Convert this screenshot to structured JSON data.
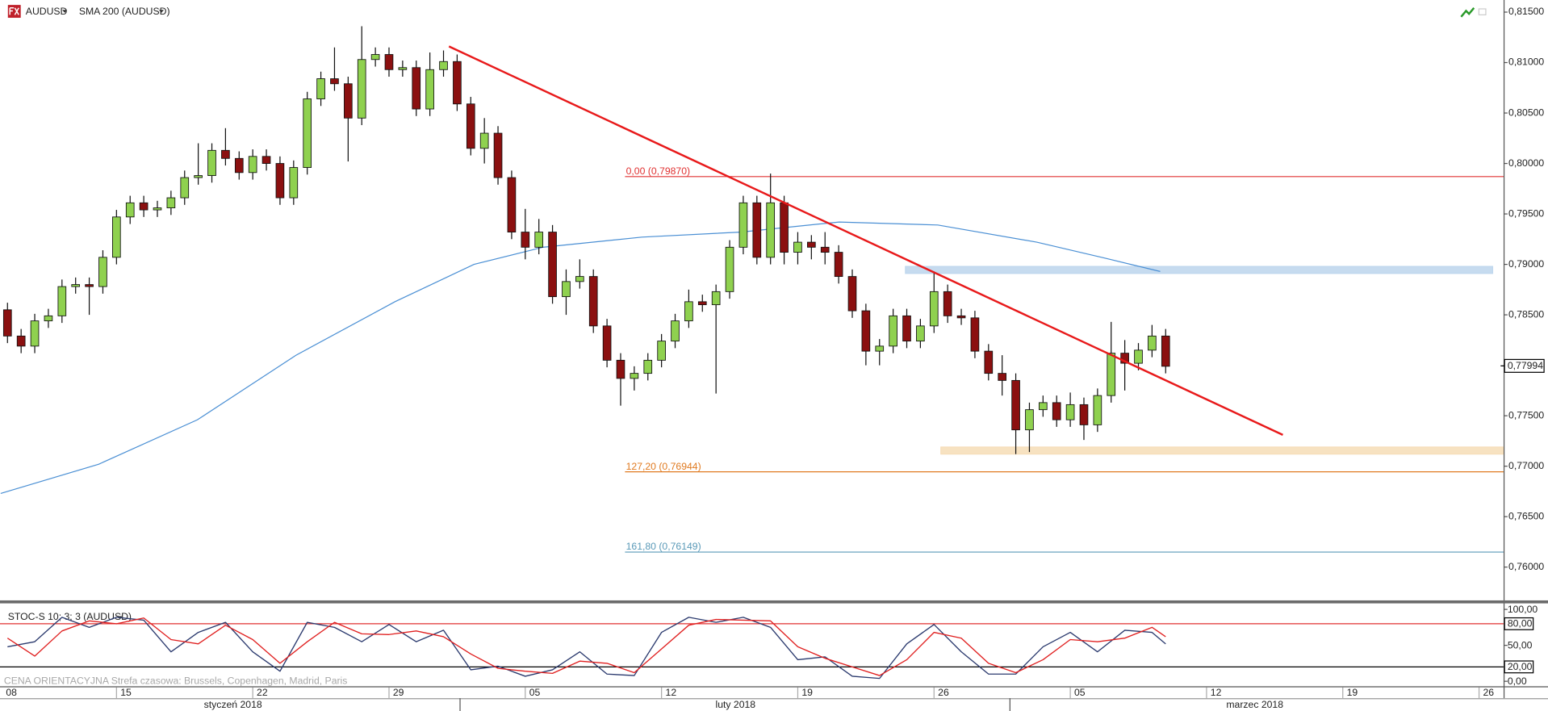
{
  "labels": {
    "watermark": "CENA ORIENTACYJNA   Strefa czasowa: Brussels, Copenhagen, Madrid, Paris",
    "months": [
      "styczeń 2018",
      "luty 2018",
      "marzec 2018"
    ]
  },
  "chart_data": [
    {
      "type": "candlestick",
      "title": "AUDUSD",
      "up_color": "#8fd14f",
      "down_color": "#8b1010",
      "grid": false,
      "xlim": [
        0.725,
        55.9
      ],
      "ylim": [
        0.7567,
        0.8162
      ],
      "yticks": [
        {
          "value": 0.815,
          "label": "0,81500"
        },
        {
          "value": 0.81,
          "label": "0,81000"
        },
        {
          "value": 0.805,
          "label": "0,80500"
        },
        {
          "value": 0.8,
          "label": "0,80000"
        },
        {
          "value": 0.795,
          "label": "0,79500"
        },
        {
          "value": 0.79,
          "label": "0,79000"
        },
        {
          "value": 0.785,
          "label": "0,78500"
        },
        {
          "value": 0.78,
          "label": "0,78000"
        },
        {
          "value": 0.775,
          "label": "0,77500"
        },
        {
          "value": 0.77,
          "label": "0,77000"
        },
        {
          "value": 0.765,
          "label": "0,76500"
        },
        {
          "value": 0.76,
          "label": "0,76000"
        }
      ],
      "x": [
        1,
        1.5,
        2,
        2.5,
        3,
        3.5,
        4,
        4.5,
        5,
        5.5,
        6,
        6.5,
        7,
        7.5,
        8,
        8.5,
        9,
        9.5,
        10,
        10.5,
        11,
        11.5,
        12,
        12.5,
        13,
        13.5,
        14,
        14.5,
        15,
        15.5,
        16,
        16.5,
        17,
        17.5,
        18,
        18.5,
        19,
        19.5,
        20,
        20.5,
        21,
        21.5,
        22,
        22.5,
        23,
        23.5,
        24,
        24.5,
        25,
        25.5,
        26,
        26.5,
        27,
        27.5,
        28,
        28.5,
        29,
        29.5,
        30,
        30.5,
        31,
        31.5,
        32,
        32.5,
        33,
        33.5,
        34,
        34.5,
        35,
        35.5,
        36,
        36.5,
        37,
        37.5,
        38,
        38.5,
        39,
        39.5,
        40,
        40.5,
        41,
        41.5,
        42,
        42.5,
        43,
        43.5
      ],
      "open": [
        0.7855,
        0.7829,
        0.7819,
        0.7844,
        0.7849,
        0.7878,
        0.788,
        0.7878,
        0.7907,
        0.7947,
        0.7961,
        0.7954,
        0.7956,
        0.7966,
        0.7986,
        0.7988,
        0.8013,
        0.8005,
        0.7991,
        0.8007,
        0.8,
        0.7966,
        0.7996,
        0.8064,
        0.8084,
        0.8079,
        0.8045,
        0.8103,
        0.8108,
        0.8093,
        0.8095,
        0.8054,
        0.8093,
        0.8101,
        0.8059,
        0.8015,
        0.803,
        0.7986,
        0.7932,
        0.7917,
        0.7932,
        0.7868,
        0.7883,
        0.7888,
        0.7839,
        0.7805,
        0.7787,
        0.7792,
        0.7805,
        0.7824,
        0.7844,
        0.7863,
        0.786,
        0.7873,
        0.7917,
        0.7961,
        0.7907,
        0.7961,
        0.7912,
        0.7922,
        0.7917,
        0.7912,
        0.7888,
        0.7854,
        0.7814,
        0.7819,
        0.7849,
        0.7824,
        0.7839,
        0.7873,
        0.7849,
        0.7847,
        0.7814,
        0.7792,
        0.7785,
        0.7736,
        0.7756,
        0.7763,
        0.7746,
        0.7761,
        0.7741,
        0.777,
        0.7812,
        0.7802,
        0.7815,
        0.7829
      ],
      "high": [
        0.7862,
        0.7836,
        0.7851,
        0.7856,
        0.7885,
        0.7887,
        0.7887,
        0.7914,
        0.7954,
        0.7968,
        0.7968,
        0.7963,
        0.7973,
        0.7993,
        0.802,
        0.802,
        0.8035,
        0.8012,
        0.8014,
        0.8014,
        0.8007,
        0.8003,
        0.8071,
        0.8091,
        0.8115,
        0.8086,
        0.8136,
        0.8115,
        0.8115,
        0.8102,
        0.8102,
        0.811,
        0.8112,
        0.8108,
        0.8066,
        0.8045,
        0.8037,
        0.7993,
        0.7955,
        0.7945,
        0.7939,
        0.7895,
        0.7905,
        0.7895,
        0.7846,
        0.7812,
        0.7799,
        0.7812,
        0.7831,
        0.7851,
        0.7875,
        0.787,
        0.788,
        0.7924,
        0.7968,
        0.7968,
        0.799,
        0.7968,
        0.7932,
        0.7929,
        0.7932,
        0.7919,
        0.7895,
        0.7861,
        0.7826,
        0.7856,
        0.7856,
        0.7846,
        0.7893,
        0.788,
        0.7856,
        0.7854,
        0.7821,
        0.781,
        0.7792,
        0.7763,
        0.777,
        0.777,
        0.7773,
        0.7768,
        0.7777,
        0.7843,
        0.7825,
        0.7822,
        0.784,
        0.7836
      ],
      "low": [
        0.7822,
        0.7812,
        0.7812,
        0.7837,
        0.7842,
        0.7871,
        0.785,
        0.7871,
        0.79,
        0.794,
        0.7947,
        0.7947,
        0.7949,
        0.7959,
        0.7979,
        0.7981,
        0.7998,
        0.7984,
        0.7984,
        0.7993,
        0.7959,
        0.7959,
        0.7989,
        0.8057,
        0.8072,
        0.8002,
        0.8038,
        0.8096,
        0.8086,
        0.8086,
        0.8047,
        0.8047,
        0.8086,
        0.8052,
        0.8008,
        0.8,
        0.7979,
        0.7925,
        0.7905,
        0.791,
        0.7861,
        0.785,
        0.7876,
        0.7832,
        0.7798,
        0.776,
        0.7775,
        0.7785,
        0.7798,
        0.7817,
        0.7837,
        0.7853,
        0.7772,
        0.7866,
        0.791,
        0.79,
        0.79,
        0.79,
        0.79,
        0.7905,
        0.79,
        0.7881,
        0.7847,
        0.78,
        0.78,
        0.7812,
        0.7817,
        0.7817,
        0.7832,
        0.7842,
        0.784,
        0.7807,
        0.7785,
        0.777,
        0.7712,
        0.7714,
        0.7749,
        0.7739,
        0.7739,
        0.7726,
        0.7734,
        0.7763,
        0.7775,
        0.7795,
        0.7808,
        0.7792
      ],
      "close": [
        0.7829,
        0.7819,
        0.7844,
        0.7849,
        0.7878,
        0.788,
        0.7878,
        0.7907,
        0.7947,
        0.7961,
        0.7954,
        0.7956,
        0.7966,
        0.7986,
        0.7988,
        0.8013,
        0.8005,
        0.7991,
        0.8007,
        0.8,
        0.7966,
        0.7996,
        0.8064,
        0.8084,
        0.8079,
        0.8045,
        0.8103,
        0.8108,
        0.8093,
        0.8095,
        0.8054,
        0.8093,
        0.8101,
        0.8059,
        0.8015,
        0.803,
        0.7986,
        0.7932,
        0.7917,
        0.7932,
        0.7868,
        0.7883,
        0.7888,
        0.7839,
        0.7805,
        0.7787,
        0.7792,
        0.7805,
        0.7824,
        0.7844,
        0.7863,
        0.786,
        0.7873,
        0.7917,
        0.7961,
        0.7907,
        0.7961,
        0.7912,
        0.7922,
        0.7917,
        0.7912,
        0.7888,
        0.7854,
        0.7814,
        0.7819,
        0.7849,
        0.7824,
        0.7839,
        0.7873,
        0.7849,
        0.7847,
        0.7814,
        0.7792,
        0.7785,
        0.7736,
        0.7756,
        0.7763,
        0.7746,
        0.7761,
        0.7741,
        0.777,
        0.7812,
        0.7802,
        0.7815,
        0.7829,
        0.7799
      ],
      "series": [
        {
          "name": "SMA 200 (AUDUSD)",
          "color": "#4a8fd4",
          "x": [
            0.75,
            4.35,
            7.97,
            11.59,
            15.22,
            18.12,
            20.65,
            24.28,
            27.9,
            31.52,
            35.14,
            38.77,
            41.3,
            43.3
          ],
          "values": [
            0.7673,
            0.7702,
            0.7746,
            0.781,
            0.7863,
            0.79,
            0.7917,
            0.7927,
            0.7932,
            0.7942,
            0.7939,
            0.7922,
            0.7906,
            0.7893
          ]
        }
      ],
      "trendline": {
        "color": "#e8191a",
        "x": [
          17.2,
          47.8
        ],
        "values": [
          0.8116,
          0.7731
        ]
      },
      "hlines": [
        {
          "label": "0,00 (0,79870)",
          "value": 0.7987,
          "x0": 23.66,
          "color": "#e03030"
        },
        {
          "label": "127,20 (0,76944)",
          "value": 0.76944,
          "x0": 23.66,
          "color": "#e07a20"
        },
        {
          "label": "161,80 (0,76149)",
          "value": 0.76149,
          "x0": 23.66,
          "color": "#5a9ab8"
        }
      ],
      "zones": [
        {
          "x": [
            33.95,
            55.5
          ],
          "y": [
            0.7891,
            0.7898
          ],
          "color": "#bcd5ec"
        },
        {
          "x": [
            35.25,
            55.9
          ],
          "y": [
            0.7712,
            0.7719
          ],
          "color": "#f6ddb6"
        }
      ],
      "last_price": {
        "value": 0.77994,
        "label": "0,77994"
      }
    },
    {
      "type": "line",
      "title": "STOC-S 10; 3; 3 (AUDUSD)",
      "xlim": [
        0.725,
        55.9
      ],
      "ylim": [
        -7,
        107
      ],
      "yticks": [
        {
          "value": 100,
          "label": "100,00"
        },
        {
          "value": 80,
          "label": "80,00"
        },
        {
          "value": 50,
          "label": "50,00"
        },
        {
          "value": 20,
          "label": "20,00"
        },
        {
          "value": 0,
          "label": "0,00"
        }
      ],
      "levels": [
        80,
        20
      ],
      "level_colors": [
        "#e03030",
        "#000000"
      ],
      "xticks": [
        {
          "value": 0,
          "label": "08"
        },
        {
          "value": 5,
          "label": "15"
        },
        {
          "value": 10,
          "label": "22"
        },
        {
          "value": 15,
          "label": "29"
        },
        {
          "value": 20,
          "label": "05"
        },
        {
          "value": 25,
          "label": "12"
        },
        {
          "value": 30,
          "label": "19"
        },
        {
          "value": 35,
          "label": "26"
        },
        {
          "value": 40,
          "label": "05"
        },
        {
          "value": 45,
          "label": "12"
        },
        {
          "value": 50,
          "label": "19"
        },
        {
          "value": 55,
          "label": "26"
        }
      ],
      "x": [
        1,
        2,
        3,
        4,
        5,
        6,
        7,
        8,
        9,
        10,
        11,
        12,
        13,
        14,
        15,
        16,
        17,
        18,
        19,
        20,
        21,
        22,
        23,
        24,
        25,
        26,
        27,
        28,
        29,
        30,
        31,
        32,
        33,
        34,
        35,
        36,
        37,
        38,
        39,
        40,
        41,
        42,
        43,
        43.5
      ],
      "series": [
        {
          "color": "#2b3a6e",
          "values": [
            48,
            55,
            89,
            75,
            89,
            85,
            41,
            68,
            82,
            41,
            14,
            82,
            75,
            55,
            79,
            55,
            71,
            16,
            21,
            7,
            16,
            41,
            10,
            8,
            68,
            89,
            82,
            89,
            75,
            30,
            34,
            7,
            4,
            52,
            79,
            41,
            10,
            10,
            48,
            68,
            41,
            71,
            68,
            52
          ]
        },
        {
          "color": "#e02020",
          "values": [
            60,
            35,
            70,
            84,
            80,
            88,
            58,
            52,
            78,
            58,
            25,
            55,
            82,
            66,
            65,
            70,
            62,
            38,
            18,
            14,
            11,
            28,
            25,
            12,
            45,
            78,
            86,
            85,
            84,
            48,
            32,
            20,
            8,
            30,
            68,
            60,
            25,
            12,
            30,
            58,
            55,
            60,
            75,
            62
          ]
        }
      ]
    }
  ]
}
